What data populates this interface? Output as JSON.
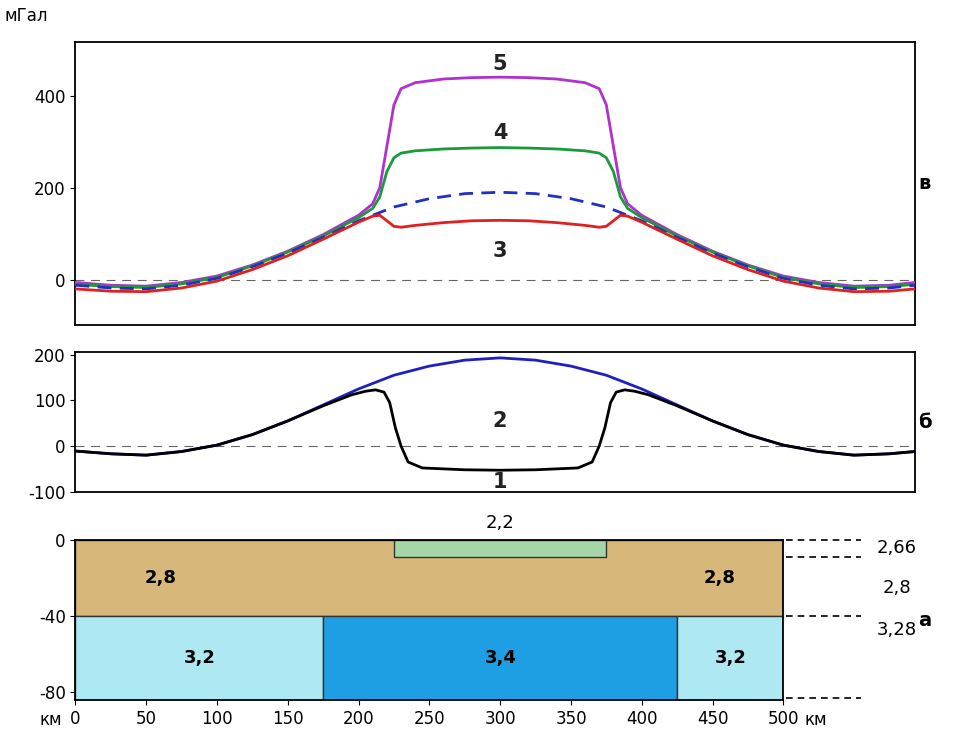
{
  "chart_data": [
    {
      "type": "line",
      "panel_label": "в",
      "y_label": "мГал",
      "xlim": [
        0,
        593
      ],
      "ylim": [
        -98,
        517
      ],
      "yticks": [
        0,
        200,
        400
      ],
      "tick_labels": "y",
      "zero_line": 0,
      "series": [
        {
          "name": "5",
          "color": "#b030d0",
          "line_style": "solid",
          "label_x": 300,
          "label_y": 468,
          "x": [
            0,
            25,
            50,
            75,
            100,
            125,
            150,
            175,
            200,
            210,
            215,
            220,
            225,
            230,
            240,
            260,
            280,
            300,
            320,
            340,
            360,
            370,
            375,
            380,
            385,
            390,
            400,
            425,
            450,
            475,
            500,
            525,
            550,
            575,
            593
          ],
          "values": [
            -6,
            -12,
            -14,
            -6,
            8,
            32,
            62,
            98,
            140,
            165,
            200,
            290,
            380,
            415,
            428,
            436,
            439,
            440,
            439,
            436,
            428,
            415,
            380,
            290,
            200,
            165,
            140,
            98,
            62,
            32,
            8,
            -6,
            -14,
            -12,
            -6
          ]
        },
        {
          "name": "4",
          "color": "#1a9a3a",
          "line_style": "solid",
          "label_x": 300,
          "label_y": 318,
          "x": [
            0,
            25,
            50,
            75,
            100,
            125,
            150,
            175,
            200,
            210,
            215,
            220,
            225,
            230,
            240,
            260,
            280,
            300,
            320,
            340,
            360,
            370,
            375,
            380,
            385,
            390,
            400,
            425,
            450,
            475,
            500,
            525,
            550,
            575,
            593
          ],
          "values": [
            -10,
            -15,
            -17,
            -9,
            5,
            30,
            60,
            95,
            135,
            155,
            180,
            235,
            265,
            275,
            280,
            284,
            286,
            287,
            286,
            284,
            280,
            275,
            265,
            235,
            180,
            155,
            135,
            95,
            60,
            30,
            5,
            -9,
            -17,
            -15,
            -10
          ]
        },
        {
          "color": "#2030c0",
          "line_style": "dashed",
          "x": [
            0,
            25,
            50,
            75,
            100,
            125,
            150,
            175,
            200,
            225,
            250,
            275,
            300,
            325,
            350,
            375,
            400,
            425,
            450,
            475,
            500,
            525,
            550,
            575,
            593
          ],
          "values": [
            -12,
            -18,
            -20,
            -12,
            3,
            28,
            58,
            92,
            128,
            158,
            176,
            187,
            190,
            187,
            176,
            158,
            128,
            92,
            58,
            28,
            3,
            -12,
            -20,
            -18,
            -12
          ]
        },
        {
          "name": "3",
          "color": "#e02020",
          "line_style": "solid",
          "label_x": 300,
          "label_y": 62,
          "x": [
            0,
            25,
            50,
            75,
            100,
            125,
            150,
            175,
            200,
            210,
            215,
            220,
            225,
            230,
            240,
            260,
            280,
            300,
            320,
            340,
            360,
            370,
            375,
            380,
            385,
            390,
            400,
            425,
            450,
            475,
            500,
            525,
            550,
            575,
            593
          ],
          "values": [
            -20,
            -25,
            -26,
            -18,
            -3,
            22,
            52,
            88,
            125,
            138,
            140,
            128,
            116,
            114,
            118,
            124,
            128,
            129,
            128,
            124,
            118,
            114,
            116,
            128,
            140,
            138,
            125,
            88,
            52,
            22,
            -3,
            -18,
            -26,
            -25,
            -20
          ]
        }
      ]
    },
    {
      "type": "line",
      "panel_label": "б",
      "xlim": [
        0,
        593
      ],
      "ylim": [
        -100,
        205
      ],
      "yticks": [
        -100,
        0,
        100,
        200
      ],
      "tick_labels": "y",
      "zero_line": 0,
      "series": [
        {
          "name": "2",
          "color": "#2020c0",
          "line_style": "solid",
          "label_x": 300,
          "label_y": 55,
          "x": [
            0,
            25,
            50,
            75,
            100,
            125,
            150,
            175,
            200,
            225,
            250,
            275,
            300,
            325,
            350,
            375,
            400,
            425,
            450,
            475,
            500,
            525,
            550,
            575,
            593
          ],
          "values": [
            -11,
            -17,
            -20,
            -12,
            2,
            25,
            55,
            90,
            125,
            155,
            175,
            188,
            193,
            188,
            175,
            155,
            125,
            90,
            55,
            25,
            2,
            -12,
            -20,
            -17,
            -12
          ]
        },
        {
          "name": "1",
          "color": "#000000",
          "line_style": "solid",
          "label_x": 300,
          "label_y": -78,
          "x": [
            0,
            25,
            50,
            75,
            100,
            125,
            150,
            175,
            185,
            195,
            205,
            212,
            218,
            222,
            226,
            230,
            235,
            245,
            275,
            300,
            325,
            355,
            365,
            370,
            374,
            378,
            382,
            388,
            395,
            405,
            415,
            425,
            450,
            475,
            500,
            525,
            550,
            575,
            593
          ],
          "values": [
            -11,
            -17,
            -20,
            -12,
            2,
            25,
            55,
            88,
            100,
            112,
            120,
            123,
            118,
            95,
            40,
            0,
            -35,
            -48,
            -52,
            -53,
            -52,
            -48,
            -35,
            0,
            40,
            95,
            118,
            123,
            120,
            112,
            100,
            88,
            55,
            25,
            2,
            -12,
            -20,
            -17,
            -12
          ]
        }
      ]
    },
    {
      "type": "blocks",
      "panel_label": "а",
      "x_label": "км",
      "xlim": [
        0,
        500
      ],
      "ylim": [
        -84,
        0
      ],
      "xticks": [
        0,
        50,
        100,
        150,
        200,
        250,
        300,
        350,
        400,
        450,
        500
      ],
      "yticks": [
        -80,
        -40,
        0
      ],
      "blocks": [
        {
          "x": [
            0,
            500
          ],
          "depth": [
            0,
            -40
          ],
          "label": "2,8",
          "label_x": [
            60,
            455
          ],
          "color": "#d8b87a"
        },
        {
          "x": [
            225,
            375
          ],
          "depth": [
            0,
            -9
          ],
          "label": "2,2",
          "color": "#a5d6a7"
        },
        {
          "x": [
            0,
            175
          ],
          "depth": [
            -40,
            -84
          ],
          "label": "3,2",
          "color": "#aee8f2"
        },
        {
          "x": [
            175,
            425
          ],
          "depth": [
            -40,
            -84
          ],
          "label": "3,4",
          "color": "#1e9fe3"
        },
        {
          "x": [
            425,
            500
          ],
          "depth": [
            -40,
            -84
          ],
          "label": "3,2",
          "color": "#aee8f2"
        }
      ],
      "reference": [
        {
          "top": 0,
          "bottom": -9,
          "label": "2,66",
          "label_depth": -4
        },
        {
          "top": -9,
          "bottom": -40,
          "label": "2,8",
          "label_depth": -25
        },
        {
          "top": -40,
          "bottom": -83,
          "label": "3,28",
          "label_depth": -47
        }
      ]
    }
  ]
}
